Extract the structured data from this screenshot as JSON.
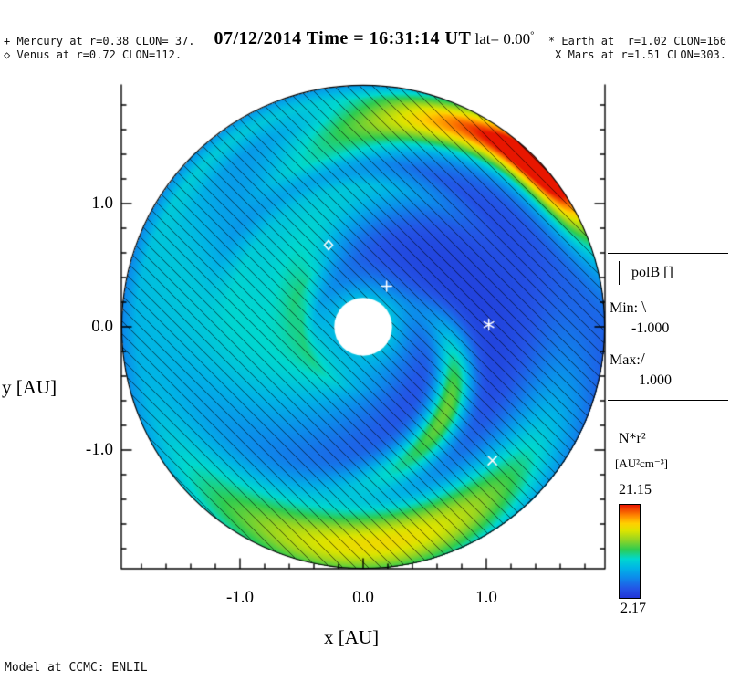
{
  "title": {
    "datetime": "07/12/2014 Time = 16:31:14 UT",
    "lat_label": " lat= 0.00",
    "degree": "°"
  },
  "legend_planets": {
    "mercury": "+ Mercury at r=0.38 CLON= 37.",
    "venus": "◇ Venus at r=0.72 CLON=112.",
    "earth": "* Earth at  r=1.02 CLON=166",
    "mars": "X Mars at r=1.51 CLON=303."
  },
  "axes": {
    "xlabel": "x [AU]",
    "ylabel": "y [AU]",
    "xtick_labels": [
      "-1.0",
      "0.0",
      "1.0"
    ],
    "ytick_labels": [
      "1.0",
      "0.0",
      "-1.0"
    ]
  },
  "polb_legend": {
    "title": "polB []",
    "min_label": "Min:",
    "min_symbol": "\\",
    "min_value": "-1.000",
    "max_label": "Max:",
    "max_symbol": "/",
    "max_value": "1.000"
  },
  "colorbar": {
    "label": "N*r²",
    "units": "[AU²cm⁻³]",
    "max": "21.15",
    "min": "2.17"
  },
  "footer": {
    "model_label": "Model at CCMC: ENLIL"
  },
  "chart_data": {
    "type": "heatmap",
    "title": "07/12/2014 Time = 16:31:14 UT lat= 0.00°",
    "xlabel": "x [AU]",
    "ylabel": "y [AU]",
    "quantity": "N*r²",
    "units": "[AU²cm⁻³]",
    "value_min": 2.17,
    "value_max": 21.15,
    "xlim": [
      -1.96,
      1.96
    ],
    "ylim": [
      -1.96,
      1.96
    ],
    "xticks": [
      -1.0,
      0.0,
      1.0
    ],
    "yticks": [
      -1.0,
      0.0,
      1.0
    ],
    "minor_tick_step": 0.2,
    "domain_radius_au": 1.96,
    "sun_radius_au": 0.1,
    "polB": {
      "min": -1.0,
      "max": 1.0,
      "hatch_direction": "\\",
      "hatch_spacing_px": 14
    },
    "colormap_stops": [
      [
        0.0,
        "#2134d6"
      ],
      [
        0.1,
        "#2355e6"
      ],
      [
        0.22,
        "#0c8ceb"
      ],
      [
        0.32,
        "#00b4e6"
      ],
      [
        0.42,
        "#00d8cf"
      ],
      [
        0.52,
        "#2fcc50"
      ],
      [
        0.62,
        "#90d425"
      ],
      [
        0.72,
        "#dce400"
      ],
      [
        0.8,
        "#ffd000"
      ],
      [
        0.88,
        "#ff8a00"
      ],
      [
        1.0,
        "#e81600"
      ]
    ],
    "background_density": 3.0,
    "features": [
      {
        "name": "center-glow",
        "amp": 9,
        "angle_deg": null,
        "angle_sigma_deg": null,
        "wrap_deg_per_au": 0,
        "r_ref_au": 1,
        "radial": {
          "type": "gauss",
          "r0": 0,
          "sigma": 0.25
        }
      },
      {
        "name": "broad-cyan-arm",
        "amp": 7,
        "angle_deg": 165,
        "angle_sigma_deg": 50,
        "wrap_deg_per_au": 60,
        "r_ref_au": 1.2,
        "radial": {
          "type": "band",
          "r_in": 0.25,
          "r_out": 2.1,
          "soft": 0.25
        }
      },
      {
        "name": "mid-cyan-arm",
        "amp": 4,
        "angle_deg": 120,
        "angle_sigma_deg": 25,
        "wrap_deg_per_au": 100,
        "r_ref_au": 0.8,
        "radial": {
          "type": "band",
          "r_in": 0.4,
          "r_out": 1.35,
          "soft": 0.2
        }
      },
      {
        "name": "upper-left-slate-patch",
        "amp": -3,
        "angle_deg": 133,
        "angle_sigma_deg": 17,
        "wrap_deg_per_au": 40,
        "r_ref_au": 1.5,
        "radial": {
          "type": "band",
          "r_in": 1.1,
          "r_out": 1.9,
          "soft": 0.2
        }
      },
      {
        "name": "top-cyan-band",
        "amp": 3,
        "angle_deg": 88,
        "angle_sigma_deg": 18,
        "wrap_deg_per_au": 80,
        "r_ref_au": 1.6,
        "radial": {
          "type": "band",
          "r_in": 1.25,
          "r_out": 2.1,
          "soft": 0.15
        }
      },
      {
        "name": "top-right-stream",
        "amp": 12.5,
        "angle_deg": 52,
        "angle_sigma_deg": 18,
        "wrap_deg_per_au": 90,
        "r_ref_au": 1.85,
        "radial": {
          "type": "gauss",
          "r0": 1.88,
          "sigma": 0.2
        }
      },
      {
        "name": "top-right-cme-core",
        "amp": 7,
        "angle_deg": 38,
        "angle_sigma_deg": 11,
        "wrap_deg_per_au": 0,
        "r_ref_au": 1.9,
        "radial": {
          "type": "gauss",
          "r0": 1.9,
          "sigma": 0.13
        }
      },
      {
        "name": "bottom-stream",
        "amp": 13.5,
        "angle_deg": 273,
        "angle_sigma_deg": 42,
        "wrap_deg_per_au": 50,
        "r_ref_au": 1.8,
        "radial": {
          "type": "gauss",
          "r0": 1.76,
          "sigma": 0.24
        }
      },
      {
        "name": "bottom-inner-green-blob",
        "amp": 10,
        "angle_deg": 315,
        "angle_sigma_deg": 16,
        "wrap_deg_per_au": 120,
        "r_ref_au": 0.95,
        "radial": {
          "type": "gauss",
          "r0": 0.95,
          "sigma": 0.26
        }
      }
    ],
    "planets": [
      {
        "name": "mercury",
        "symbol": "+",
        "r_au": 0.38,
        "clon": 37,
        "plot_angle_deg": 60
      },
      {
        "name": "venus",
        "symbol": "diamond",
        "r_au": 0.72,
        "clon": 112,
        "plot_angle_deg": 113
      },
      {
        "name": "earth",
        "symbol": "*",
        "r_au": 1.02,
        "clon": 166,
        "plot_angle_deg": 1
      },
      {
        "name": "mars",
        "symbol": "x",
        "r_au": 1.51,
        "clon": 303,
        "plot_angle_deg": -46
      }
    ]
  }
}
